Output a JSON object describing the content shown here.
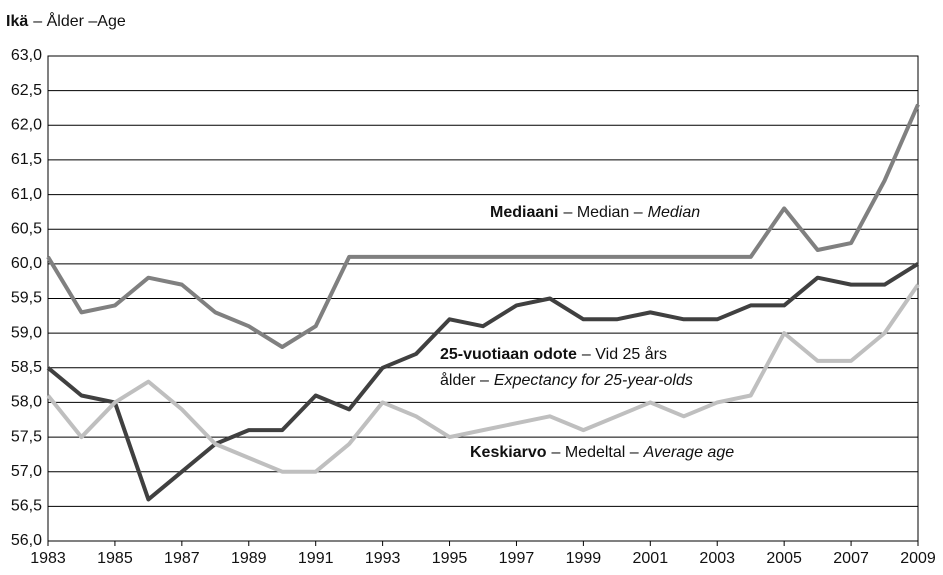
{
  "chart_data": {
    "type": "line",
    "ylabel": "Ikä",
    "ylabel_rest": "– Ålder –Age",
    "x": [
      1983,
      1984,
      1985,
      1986,
      1987,
      1988,
      1989,
      1990,
      1991,
      1992,
      1993,
      1994,
      1995,
      1996,
      1997,
      1998,
      1999,
      2000,
      2001,
      2002,
      2003,
      2004,
      2005,
      2006,
      2007,
      2008,
      2009
    ],
    "xlim": [
      1983,
      2009
    ],
    "xticks": [
      1983,
      1985,
      1987,
      1989,
      1991,
      1993,
      1995,
      1997,
      1999,
      2001,
      2003,
      2005,
      2007,
      2009
    ],
    "ylim": [
      56,
      63
    ],
    "yticks": [
      {
        "value": 56,
        "label": "56,0"
      },
      {
        "value": 56.5,
        "label": "56,5"
      },
      {
        "value": 57,
        "label": "57,0"
      },
      {
        "value": 57.5,
        "label": "57,5"
      },
      {
        "value": 58,
        "label": "58,0"
      },
      {
        "value": 58.5,
        "label": "58,5"
      },
      {
        "value": 59,
        "label": "59,0"
      },
      {
        "value": 59.5,
        "label": "59,5"
      },
      {
        "value": 60,
        "label": "60,0"
      },
      {
        "value": 60.5,
        "label": "60,5"
      },
      {
        "value": 61,
        "label": "61,0"
      },
      {
        "value": 61.5,
        "label": "61,5"
      },
      {
        "value": 62,
        "label": "62,0"
      },
      {
        "value": 62.5,
        "label": "62,5"
      },
      {
        "value": 63,
        "label": "63,0"
      }
    ],
    "grid": true,
    "series": [
      {
        "name": "Mediaani",
        "color": "#808080",
        "label_lines": [
          [
            {
              "text": "– Median –"
            },
            {
              "text": "Median",
              "italic": true
            }
          ]
        ],
        "values": [
          60.1,
          59.3,
          59.4,
          59.8,
          59.7,
          59.3,
          59.1,
          58.8,
          59.1,
          60.1,
          60.1,
          60.1,
          60.1,
          60.1,
          60.1,
          60.1,
          60.1,
          60.1,
          60.1,
          60.1,
          60.1,
          60.1,
          60.8,
          60.2,
          60.3,
          61.2,
          62.3
        ]
      },
      {
        "name": "25-vuotiaan odote",
        "color": "#404040",
        "label_lines": [
          [
            {
              "text": "– Vid 25 års"
            }
          ],
          [
            {
              "text": "ålder –"
            },
            {
              "text": "Expectancy for 25-year-olds",
              "italic": true
            }
          ]
        ],
        "values": [
          58.5,
          58.1,
          58.0,
          56.6,
          57.0,
          57.4,
          57.6,
          57.6,
          58.1,
          57.9,
          58.5,
          58.7,
          59.2,
          59.1,
          59.4,
          59.5,
          59.2,
          59.2,
          59.3,
          59.2,
          59.2,
          59.4,
          59.4,
          59.8,
          59.7,
          59.7,
          60.0
        ]
      },
      {
        "name": "Keskiarvo",
        "color": "#bfbfbf",
        "label_lines": [
          [
            {
              "text": "– Medeltal –"
            },
            {
              "text": "Average age",
              "italic": true
            }
          ]
        ],
        "values": [
          58.1,
          57.5,
          58.0,
          58.3,
          57.9,
          57.4,
          57.2,
          57.0,
          57.0,
          57.4,
          58.0,
          57.8,
          57.5,
          57.6,
          57.7,
          57.8,
          57.6,
          57.8,
          58.0,
          57.8,
          58.0,
          58.1,
          59.0,
          58.6,
          58.6,
          59.0,
          59.7
        ]
      }
    ]
  }
}
